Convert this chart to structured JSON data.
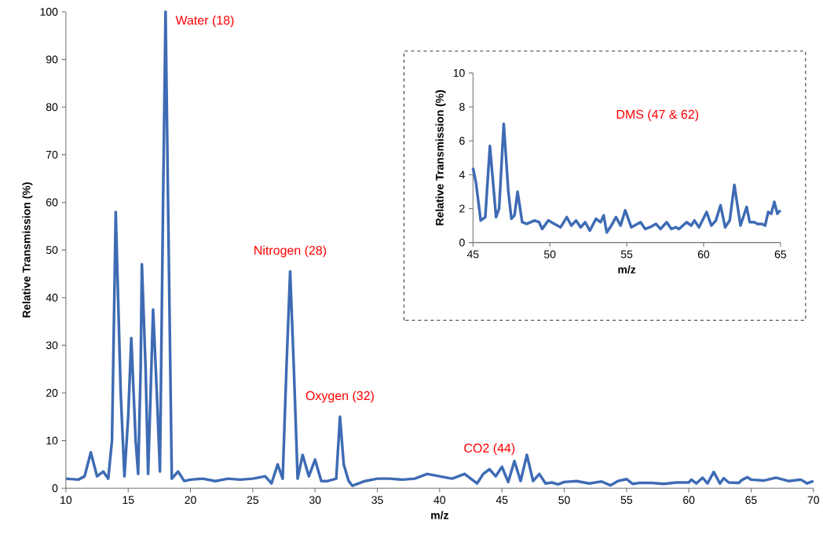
{
  "chart_data": [
    {
      "type": "line",
      "xlabel": "m/z",
      "ylabel": "Relative Transmission (%)",
      "xlim": [
        10,
        70
      ],
      "ylim": [
        0,
        100
      ],
      "xticks": [
        10,
        15,
        20,
        25,
        30,
        35,
        40,
        45,
        50,
        55,
        60,
        65,
        70
      ],
      "yticks": [
        0,
        10,
        20,
        30,
        40,
        50,
        60,
        70,
        80,
        90,
        100
      ],
      "x": [
        10,
        11,
        11.5,
        12,
        12.5,
        13,
        13.4,
        13.7,
        14,
        14.4,
        14.7,
        15,
        15.25,
        15.6,
        15.8,
        16,
        16.1,
        16.4,
        16.6,
        16.8,
        17,
        17.3,
        17.55,
        17.8,
        18,
        18.2,
        18.5,
        19,
        19.5,
        20,
        21,
        22,
        23,
        24,
        25,
        26,
        26.5,
        27,
        27.4,
        27.7,
        28,
        28.3,
        28.6,
        29,
        29.5,
        30,
        30.5,
        31,
        31.7,
        32,
        32.3,
        32.7,
        33,
        34,
        35,
        36,
        37,
        38,
        39,
        40,
        41,
        42,
        43,
        43.5,
        44,
        44.5,
        45,
        45.5,
        46,
        46.5,
        47,
        47.5,
        48,
        48.5,
        49,
        49.5,
        50,
        51,
        52,
        53,
        53.7,
        54.3,
        55,
        55.5,
        56,
        57,
        58,
        59,
        60,
        60.2,
        60.6,
        61.1,
        61.5,
        62,
        62.5,
        62.8,
        63.2,
        64,
        64.3,
        64.7,
        65,
        66,
        67,
        68,
        69,
        69.5,
        70
      ],
      "series": [
        {
          "color": "#3e6bb4",
          "values": [
            2,
            1.8,
            2.5,
            7.5,
            2.5,
            3.5,
            2,
            10,
            58,
            20,
            2.5,
            15,
            31.5,
            10,
            3,
            25,
            47,
            25,
            3,
            20,
            37.5,
            20,
            3.5,
            60,
            100,
            60,
            2,
            3.5,
            1.5,
            1.8,
            2,
            1.5,
            2,
            1.8,
            2,
            2.5,
            1,
            5,
            2,
            25,
            45.5,
            25,
            2,
            7,
            2.5,
            6,
            1.5,
            1.5,
            2,
            15,
            5,
            1.5,
            0.5,
            1.5,
            2,
            2,
            1.8,
            2,
            3,
            2.5,
            2,
            3,
            1,
            3,
            4,
            2.5,
            4.5,
            1.3,
            5.7,
            1.5,
            7,
            1.5,
            3,
            1,
            1.2,
            0.8,
            1.3,
            1.5,
            1,
            1.4,
            0.6,
            1.5,
            1.9,
            0.9,
            1.1,
            1.1,
            0.9,
            1.2,
            1.2,
            1.8,
            1,
            2.2,
            1,
            3.4,
            1,
            2.1,
            1.2,
            1.1,
            1.8,
            2.3,
            1.8,
            1.6,
            2.2,
            1.5,
            1.8,
            1,
            1.5
          ]
        }
      ],
      "annotations": [
        {
          "text": "Water (18)",
          "x": 18,
          "y": 100
        },
        {
          "text": "Nitrogen (28)",
          "x": 28,
          "y": 45.5
        },
        {
          "text": "Oxygen (32)",
          "x": 32,
          "y": 15
        },
        {
          "text": "CO2 (44)",
          "x": 44,
          "y": 4
        }
      ]
    },
    {
      "type": "line",
      "xlabel": "m/z",
      "ylabel": "Relative Transmission (%)",
      "xlim": [
        45,
        65
      ],
      "ylim": [
        0,
        10
      ],
      "xticks": [
        45,
        50,
        55,
        60,
        65
      ],
      "yticks": [
        0,
        2,
        4,
        6,
        8,
        10
      ],
      "x": [
        45,
        45.2,
        45.5,
        45.8,
        46.1,
        46.5,
        46.7,
        47,
        47.3,
        47.5,
        47.7,
        47.9,
        48.2,
        48.5,
        49,
        49.3,
        49.5,
        49.9,
        50.3,
        50.7,
        51.1,
        51.4,
        51.7,
        52,
        52.3,
        52.6,
        53,
        53.3,
        53.5,
        53.7,
        54,
        54.3,
        54.6,
        54.9,
        55.3,
        55.9,
        56.2,
        56.5,
        56.9,
        57.2,
        57.6,
        57.9,
        58.2,
        58.4,
        58.9,
        59.2,
        59.4,
        59.7,
        60.2,
        60.5,
        60.8,
        61.1,
        61.4,
        61.7,
        62,
        62.4,
        62.8,
        63,
        63.3,
        63.5,
        63.8,
        64,
        64.2,
        64.4,
        64.6,
        64.8,
        65
      ],
      "series": [
        {
          "color": "#3e6bb4",
          "values": [
            4.4,
            3.5,
            1.3,
            1.5,
            5.7,
            1.5,
            2,
            7,
            3,
            1.4,
            1.6,
            3,
            1.2,
            1.1,
            1.3,
            1.2,
            0.8,
            1.3,
            1.1,
            0.9,
            1.5,
            1,
            1.3,
            0.9,
            1.2,
            0.7,
            1.4,
            1.2,
            1.6,
            0.6,
            1,
            1.5,
            1,
            1.9,
            0.9,
            1.2,
            0.8,
            0.9,
            1.1,
            0.8,
            1.2,
            0.8,
            0.9,
            0.8,
            1.2,
            1,
            1.3,
            0.9,
            1.8,
            1,
            1.3,
            2.2,
            0.9,
            1.3,
            3.4,
            1,
            2.1,
            1.2,
            1.2,
            1.1,
            1.1,
            1,
            1.8,
            1.7,
            2.4,
            1.7,
            1.9
          ]
        }
      ],
      "annotations": [
        "DMS (47 & 62)"
      ]
    }
  ]
}
